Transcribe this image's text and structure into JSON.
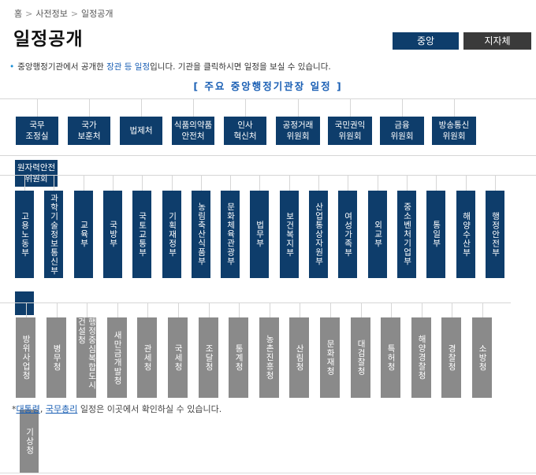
{
  "breadcrumb": {
    "home": "홈",
    "sep": ">",
    "level1": "사전정보",
    "level2": "일정공개"
  },
  "page_title": "일정공개",
  "tabs": {
    "central": "중앙",
    "local": "지자체"
  },
  "intro": {
    "pre": "중앙행정기관에서 공개한 ",
    "link": "장관 등 일정",
    "post": "입니다. 기관을 클릭하시면 일정을 보실 수 있습니다."
  },
  "subhead": "[ 주요 중앙행정기관장 일정 ]",
  "row1": [
    "국무\n조정실",
    "국가\n보훈처",
    "법제처",
    "식품의약품\n안전처",
    "인사\n혁신처",
    "공정거래\n위원회",
    "국민권익\n위원회",
    "금융\n위원회",
    "방송통신\n위원회"
  ],
  "extra_box": "원자력안전\n위원회",
  "ministries": [
    "고용노동부",
    "과학기술정보통신부",
    "교육부",
    "국방부",
    "국토교통부",
    "기획재정부",
    "농림축산식품부",
    "문화체육관광부",
    "법무부",
    "보건복지부",
    "산업통상자원부",
    "여성가족부",
    "외교부",
    "중소벤처기업부",
    "통일부",
    "해양수산부",
    "행정안전부"
  ],
  "agencies": [
    "방위사업청",
    "병무청",
    "행정중심복합\n도시건설청",
    "새만금개발청",
    "관세청",
    "국세청",
    "조달청",
    "통계청",
    "농촌진흥청",
    "산림청",
    "문화재청",
    "대검찰청",
    "특허청",
    "해양경찰청",
    "경찰청",
    "소방청"
  ],
  "agency_extra": "기상청",
  "note": {
    "prefix": "*",
    "link1": "대통령",
    "comma": ", ",
    "link2": "국무총리",
    "post": " 일정은 이곳에서 확인하실 수 있습니다."
  }
}
